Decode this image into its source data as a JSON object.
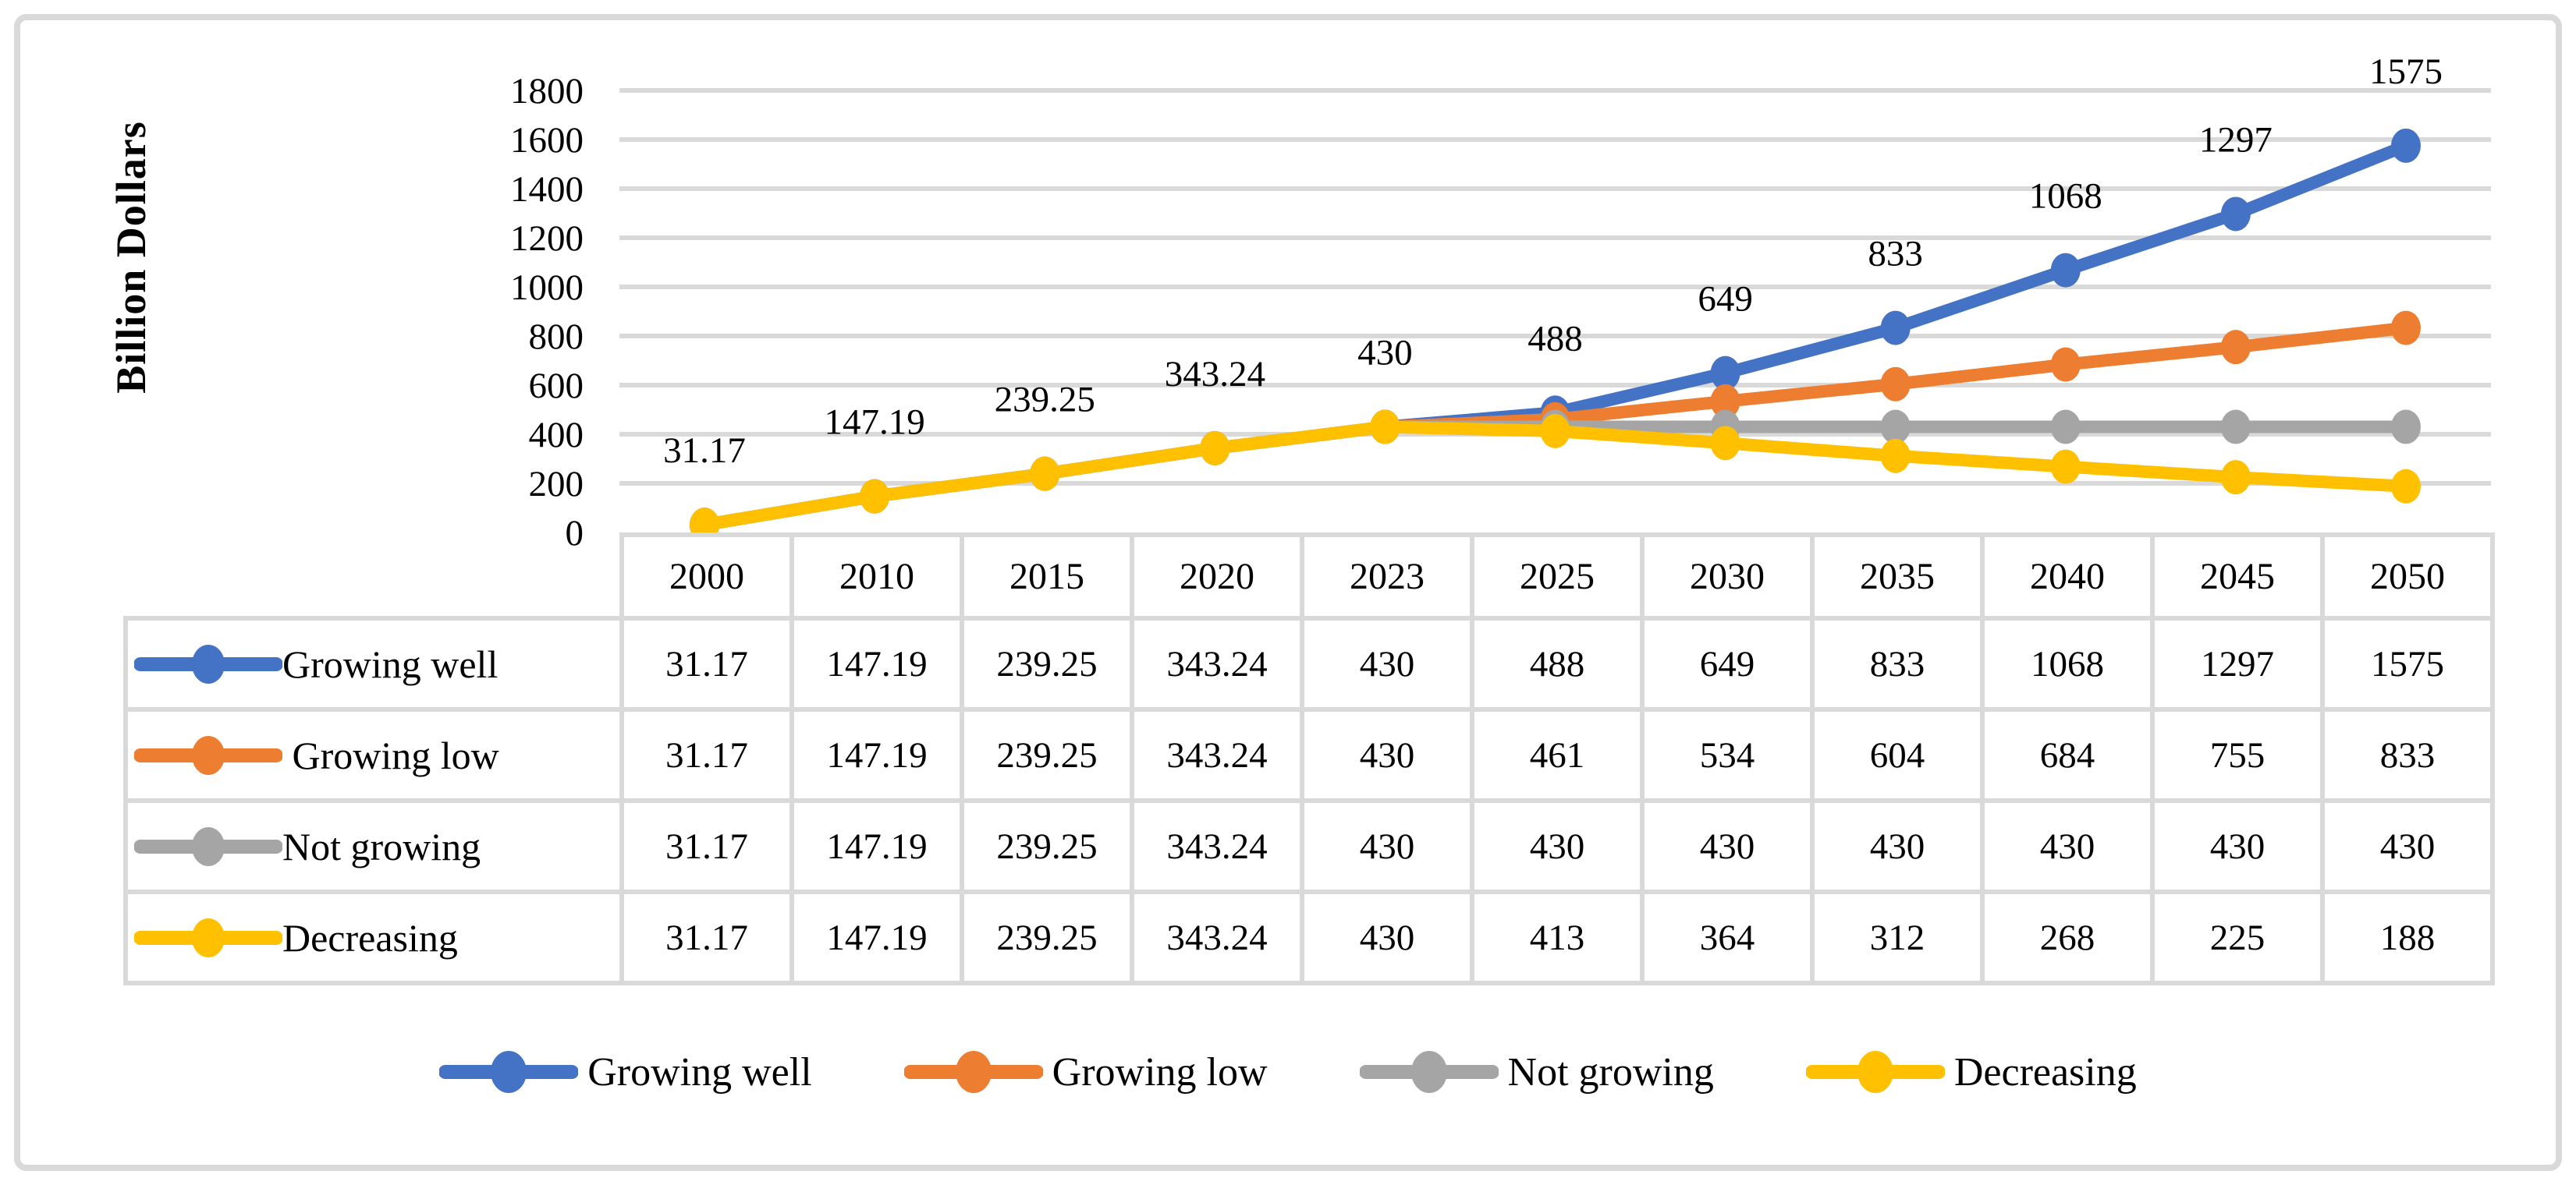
{
  "figure": {
    "ylabel": "Billion Dollars",
    "border_color": "#D9D9D9",
    "grid_color": "#D9D9D9",
    "background": "#FFFFFF",
    "text_color": "#000000"
  },
  "chart_data": {
    "type": "line",
    "title": "",
    "xlabel": "",
    "ylabel": "Billion Dollars",
    "ylim": [
      0,
      1800
    ],
    "yticks": [
      0,
      200,
      400,
      600,
      800,
      1000,
      1200,
      1400,
      1600,
      1800
    ],
    "grid": "horizontal",
    "legend_position": "bottom",
    "marker": "circle",
    "categories": [
      "2000",
      "2010",
      "2015",
      "2020",
      "2023",
      "2025",
      "2030",
      "2035",
      "2040",
      "2045",
      "2050"
    ],
    "series": [
      {
        "name": "Growing well",
        "table_label": "Growing well",
        "color": "#4472C4",
        "values": [
          31.17,
          147.19,
          239.25,
          343.24,
          430,
          488,
          649,
          833,
          1068,
          1297,
          1575
        ]
      },
      {
        "name": "Growing low",
        "table_label": " Growing low",
        "color": "#ED7D31",
        "values": [
          31.17,
          147.19,
          239.25,
          343.24,
          430,
          461,
          534,
          604,
          684,
          755,
          833
        ]
      },
      {
        "name": "Not growing",
        "table_label": "Not growing",
        "color": "#A5A5A5",
        "values": [
          31.17,
          147.19,
          239.25,
          343.24,
          430,
          430,
          430,
          430,
          430,
          430,
          430
        ]
      },
      {
        "name": "Decreasing",
        "table_label": "Decreasing",
        "color": "#FFC000",
        "values": [
          31.17,
          147.19,
          239.25,
          343.24,
          430,
          413,
          364,
          312,
          268,
          225,
          188
        ]
      }
    ],
    "data_labels": [
      "31.17",
      "147.19",
      "239.25",
      "343.24",
      "430",
      "488",
      "649",
      "833",
      "1068",
      "1297",
      "1575"
    ]
  }
}
